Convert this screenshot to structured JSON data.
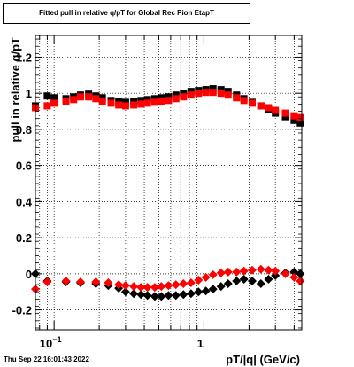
{
  "chart_data": {
    "type": "scatter",
    "title": "Fitted pull in relative q/pT for Global Rec Pion EtapT",
    "xlabel": "pT/|q| (GeV/c)",
    "ylabel": "pull in relative q/pT",
    "x_scale": "log",
    "xlim": [
      0.075,
      4.5
    ],
    "ylim": [
      -0.31,
      1.32
    ],
    "grid": true,
    "y_ticks": [
      -0.2,
      0,
      0.2,
      0.4,
      0.6,
      0.8,
      1,
      1.2
    ],
    "x_tick_labels": [
      {
        "value": 0.1,
        "label": "10−1"
      },
      {
        "value": 1,
        "label": "1"
      }
    ],
    "series": [
      {
        "marker": "square",
        "color": "#000000",
        "points": [
          [
            0.075,
            0.93
          ],
          [
            0.09,
            0.985
          ],
          [
            0.1,
            0.975
          ],
          [
            0.12,
            0.97
          ],
          [
            0.135,
            0.98
          ],
          [
            0.15,
            0.99
          ],
          [
            0.17,
            0.995
          ],
          [
            0.19,
            0.985
          ],
          [
            0.21,
            0.975
          ],
          [
            0.24,
            0.96
          ],
          [
            0.27,
            0.955
          ],
          [
            0.3,
            0.95
          ],
          [
            0.34,
            0.955
          ],
          [
            0.38,
            0.96
          ],
          [
            0.42,
            0.965
          ],
          [
            0.47,
            0.97
          ],
          [
            0.52,
            0.975
          ],
          [
            0.58,
            0.98
          ],
          [
            0.65,
            0.99
          ],
          [
            0.73,
            1.0
          ],
          [
            0.82,
            1.01
          ],
          [
            0.92,
            1.015
          ],
          [
            1.03,
            1.02
          ],
          [
            1.15,
            1.025
          ],
          [
            1.3,
            1.02
          ],
          [
            1.45,
            1.01
          ],
          [
            1.65,
            0.99
          ],
          [
            1.85,
            0.97
          ],
          [
            2.1,
            0.95
          ],
          [
            2.4,
            0.93
          ],
          [
            2.7,
            0.91
          ],
          [
            3.0,
            0.89
          ],
          [
            3.5,
            0.87
          ],
          [
            4.0,
            0.85
          ],
          [
            4.4,
            0.835
          ]
        ]
      },
      {
        "marker": "square",
        "color": "#ff0000",
        "points": [
          [
            0.075,
            0.92
          ],
          [
            0.09,
            0.93
          ],
          [
            0.1,
            0.945
          ],
          [
            0.12,
            0.955
          ],
          [
            0.135,
            0.965
          ],
          [
            0.15,
            0.98
          ],
          [
            0.17,
            0.98
          ],
          [
            0.19,
            0.97
          ],
          [
            0.21,
            0.955
          ],
          [
            0.24,
            0.945
          ],
          [
            0.27,
            0.935
          ],
          [
            0.3,
            0.93
          ],
          [
            0.34,
            0.935
          ],
          [
            0.38,
            0.94
          ],
          [
            0.42,
            0.945
          ],
          [
            0.47,
            0.95
          ],
          [
            0.52,
            0.955
          ],
          [
            0.58,
            0.96
          ],
          [
            0.65,
            0.97
          ],
          [
            0.73,
            0.98
          ],
          [
            0.82,
            0.99
          ],
          [
            0.92,
            1.0
          ],
          [
            1.03,
            1.005
          ],
          [
            1.15,
            1.005
          ],
          [
            1.3,
            1.0
          ],
          [
            1.45,
            0.99
          ],
          [
            1.65,
            0.975
          ],
          [
            1.85,
            0.96
          ],
          [
            2.1,
            0.945
          ],
          [
            2.4,
            0.93
          ],
          [
            2.7,
            0.92
          ],
          [
            3.0,
            0.905
          ],
          [
            3.5,
            0.89
          ],
          [
            4.0,
            0.875
          ],
          [
            4.4,
            0.865
          ]
        ]
      },
      {
        "marker": "diamond",
        "color": "#000000",
        "points": [
          [
            0.075,
            0.0
          ],
          [
            0.09,
            -0.04
          ],
          [
            0.12,
            -0.045
          ],
          [
            0.15,
            -0.05
          ],
          [
            0.19,
            -0.055
          ],
          [
            0.23,
            -0.065
          ],
          [
            0.27,
            -0.08
          ],
          [
            0.3,
            -0.1
          ],
          [
            0.34,
            -0.11
          ],
          [
            0.38,
            -0.115
          ],
          [
            0.42,
            -0.12
          ],
          [
            0.47,
            -0.125
          ],
          [
            0.52,
            -0.125
          ],
          [
            0.58,
            -0.12
          ],
          [
            0.65,
            -0.12
          ],
          [
            0.73,
            -0.115
          ],
          [
            0.82,
            -0.11
          ],
          [
            0.92,
            -0.1
          ],
          [
            1.03,
            -0.095
          ],
          [
            1.15,
            -0.085
          ],
          [
            1.3,
            -0.07
          ],
          [
            1.45,
            -0.055
          ],
          [
            1.65,
            -0.04
          ],
          [
            1.85,
            -0.03
          ],
          [
            2.1,
            -0.04
          ],
          [
            2.4,
            -0.055
          ],
          [
            2.7,
            -0.03
          ],
          [
            3.0,
            -0.01
          ],
          [
            3.5,
            0.005
          ],
          [
            4.0,
            0.01
          ],
          [
            4.4,
            0.0
          ]
        ]
      },
      {
        "marker": "diamond",
        "color": "#ff0000",
        "points": [
          [
            0.075,
            -0.085
          ],
          [
            0.09,
            -0.045
          ],
          [
            0.12,
            -0.04
          ],
          [
            0.15,
            -0.045
          ],
          [
            0.19,
            -0.045
          ],
          [
            0.23,
            -0.05
          ],
          [
            0.27,
            -0.06
          ],
          [
            0.3,
            -0.065
          ],
          [
            0.34,
            -0.07
          ],
          [
            0.38,
            -0.075
          ],
          [
            0.42,
            -0.075
          ],
          [
            0.47,
            -0.075
          ],
          [
            0.52,
            -0.07
          ],
          [
            0.58,
            -0.065
          ],
          [
            0.65,
            -0.06
          ],
          [
            0.73,
            -0.055
          ],
          [
            0.82,
            -0.05
          ],
          [
            0.92,
            -0.035
          ],
          [
            1.03,
            -0.02
          ],
          [
            1.15,
            -0.005
          ],
          [
            1.3,
            0.005
          ],
          [
            1.45,
            0.01
          ],
          [
            1.65,
            0.01
          ],
          [
            1.85,
            0.015
          ],
          [
            2.1,
            0.02
          ],
          [
            2.4,
            0.025
          ],
          [
            2.7,
            0.02
          ],
          [
            3.0,
            0.015
          ],
          [
            3.5,
            0.0
          ],
          [
            4.0,
            -0.02
          ],
          [
            4.4,
            -0.04
          ]
        ]
      }
    ]
  },
  "datestamp": "Thu Sep 22 16:01:43 2022"
}
